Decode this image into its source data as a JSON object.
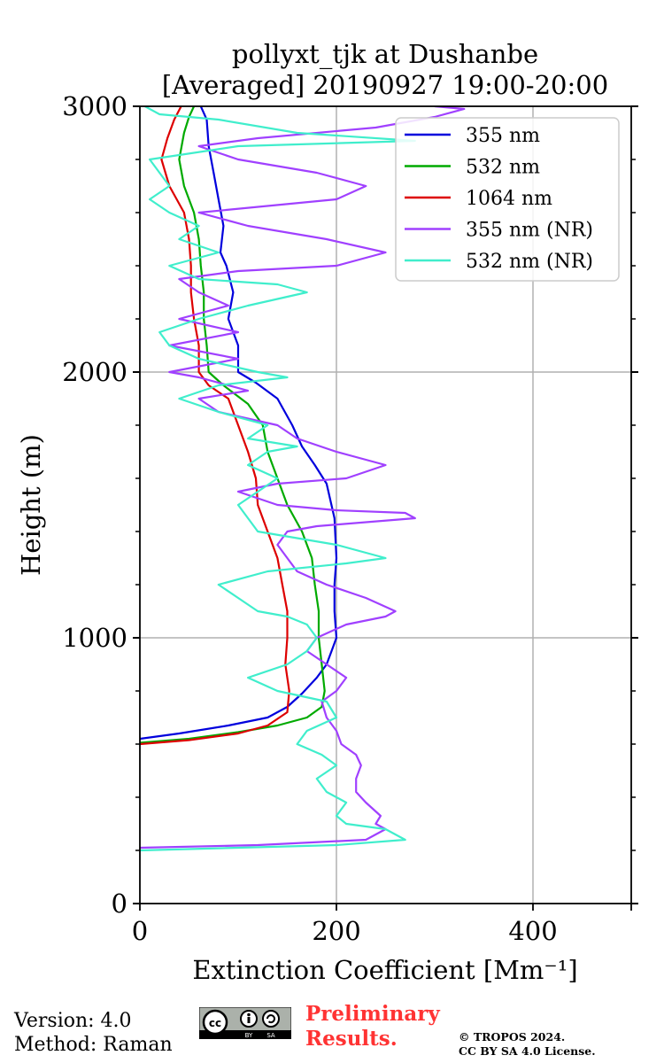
{
  "chart_data": {
    "type": "line",
    "title": "pollyxt_tjk at Dushanbe",
    "subtitle": "[Averaged] 20190927 19:00-20:00",
    "xlabel": "Extinction Coefficient [Mm⁻¹]",
    "ylabel": "Height (m)",
    "xlim": [
      0,
      500
    ],
    "ylim": [
      0,
      3000
    ],
    "xticks": [
      0,
      200,
      400
    ],
    "yticks": [
      0,
      1000,
      2000,
      3000
    ],
    "grid": true,
    "legend_position": "top-right",
    "series": [
      {
        "name": "355 nm",
        "color": "#0000dd",
        "points": [
          [
            0,
            620
          ],
          [
            40,
            640
          ],
          [
            90,
            670
          ],
          [
            130,
            700
          ],
          [
            150,
            740
          ],
          [
            165,
            790
          ],
          [
            180,
            850
          ],
          [
            190,
            900
          ],
          [
            195,
            950
          ],
          [
            200,
            1000
          ],
          [
            198,
            1100
          ],
          [
            198,
            1200
          ],
          [
            200,
            1300
          ],
          [
            198,
            1450
          ],
          [
            190,
            1580
          ],
          [
            178,
            1650
          ],
          [
            165,
            1720
          ],
          [
            155,
            1800
          ],
          [
            140,
            1900
          ],
          [
            118,
            1960
          ],
          [
            100,
            2000
          ],
          [
            100,
            2100
          ],
          [
            90,
            2200
          ],
          [
            95,
            2300
          ],
          [
            88,
            2400
          ],
          [
            82,
            2450
          ],
          [
            85,
            2550
          ],
          [
            80,
            2650
          ],
          [
            75,
            2750
          ],
          [
            70,
            2850
          ],
          [
            68,
            2950
          ],
          [
            62,
            3000
          ]
        ]
      },
      {
        "name": "532 nm",
        "color": "#00aa00",
        "points": [
          [
            0,
            605
          ],
          [
            50,
            620
          ],
          [
            100,
            645
          ],
          [
            140,
            670
          ],
          [
            170,
            700
          ],
          [
            185,
            740
          ],
          [
            188,
            800
          ],
          [
            185,
            900
          ],
          [
            182,
            1000
          ],
          [
            182,
            1100
          ],
          [
            178,
            1200
          ],
          [
            175,
            1300
          ],
          [
            165,
            1400
          ],
          [
            150,
            1500
          ],
          [
            140,
            1600
          ],
          [
            130,
            1700
          ],
          [
            125,
            1800
          ],
          [
            110,
            1880
          ],
          [
            85,
            1950
          ],
          [
            70,
            2000
          ],
          [
            68,
            2100
          ],
          [
            65,
            2200
          ],
          [
            65,
            2300
          ],
          [
            62,
            2400
          ],
          [
            60,
            2500
          ],
          [
            55,
            2600
          ],
          [
            45,
            2700
          ],
          [
            40,
            2800
          ],
          [
            45,
            2900
          ],
          [
            50,
            2960
          ],
          [
            55,
            3000
          ]
        ]
      },
      {
        "name": "1064 nm",
        "color": "#dd0000",
        "points": [
          [
            0,
            600
          ],
          [
            50,
            615
          ],
          [
            100,
            640
          ],
          [
            130,
            670
          ],
          [
            150,
            720
          ],
          [
            152,
            800
          ],
          [
            148,
            900
          ],
          [
            150,
            1000
          ],
          [
            150,
            1100
          ],
          [
            145,
            1200
          ],
          [
            140,
            1300
          ],
          [
            130,
            1400
          ],
          [
            120,
            1500
          ],
          [
            118,
            1600
          ],
          [
            110,
            1700
          ],
          [
            100,
            1800
          ],
          [
            90,
            1900
          ],
          [
            70,
            1950
          ],
          [
            60,
            2000
          ],
          [
            60,
            2100
          ],
          [
            55,
            2200
          ],
          [
            52,
            2300
          ],
          [
            52,
            2400
          ],
          [
            50,
            2500
          ],
          [
            45,
            2600
          ],
          [
            30,
            2700
          ],
          [
            22,
            2800
          ],
          [
            28,
            2880
          ],
          [
            35,
            2950
          ],
          [
            42,
            3000
          ]
        ]
      },
      {
        "name": "355 nm (NR)",
        "color": "#a040ff",
        "points": [
          [
            0,
            210
          ],
          [
            120,
            220
          ],
          [
            230,
            240
          ],
          [
            250,
            280
          ],
          [
            240,
            300
          ],
          [
            245,
            330
          ],
          [
            230,
            380
          ],
          [
            220,
            420
          ],
          [
            220,
            470
          ],
          [
            225,
            520
          ],
          [
            220,
            560
          ],
          [
            205,
            600
          ],
          [
            200,
            650
          ],
          [
            190,
            700
          ],
          [
            185,
            760
          ],
          [
            200,
            800
          ],
          [
            210,
            850
          ],
          [
            190,
            900
          ],
          [
            170,
            950
          ],
          [
            180,
            1000
          ],
          [
            210,
            1050
          ],
          [
            250,
            1080
          ],
          [
            260,
            1100
          ],
          [
            230,
            1150
          ],
          [
            190,
            1200
          ],
          [
            160,
            1250
          ],
          [
            150,
            1300
          ],
          [
            140,
            1350
          ],
          [
            150,
            1400
          ],
          [
            180,
            1420
          ],
          [
            280,
            1450
          ],
          [
            270,
            1470
          ],
          [
            200,
            1480
          ],
          [
            140,
            1500
          ],
          [
            100,
            1550
          ],
          [
            140,
            1580
          ],
          [
            210,
            1600
          ],
          [
            250,
            1650
          ],
          [
            200,
            1700
          ],
          [
            160,
            1750
          ],
          [
            140,
            1800
          ],
          [
            80,
            1850
          ],
          [
            60,
            1900
          ],
          [
            110,
            1930
          ],
          [
            60,
            1980
          ],
          [
            30,
            2000
          ],
          [
            100,
            2050
          ],
          [
            30,
            2100
          ],
          [
            100,
            2150
          ],
          [
            40,
            2200
          ],
          [
            90,
            2250
          ],
          [
            60,
            2300
          ],
          [
            40,
            2350
          ],
          [
            100,
            2380
          ],
          [
            200,
            2400
          ],
          [
            250,
            2450
          ],
          [
            190,
            2500
          ],
          [
            110,
            2550
          ],
          [
            60,
            2600
          ],
          [
            200,
            2650
          ],
          [
            230,
            2700
          ],
          [
            180,
            2750
          ],
          [
            100,
            2800
          ],
          [
            60,
            2850
          ],
          [
            120,
            2880
          ],
          [
            240,
            2920
          ],
          [
            300,
            2960
          ],
          [
            330,
            2990
          ],
          [
            300,
            3000
          ]
        ]
      },
      {
        "name": "532 nm (NR)",
        "color": "#40eecc",
        "points": [
          [
            0,
            200
          ],
          [
            100,
            210
          ],
          [
            200,
            220
          ],
          [
            270,
            240
          ],
          [
            250,
            280
          ],
          [
            210,
            300
          ],
          [
            200,
            330
          ],
          [
            210,
            380
          ],
          [
            190,
            420
          ],
          [
            180,
            470
          ],
          [
            200,
            520
          ],
          [
            185,
            560
          ],
          [
            160,
            600
          ],
          [
            170,
            650
          ],
          [
            200,
            700
          ],
          [
            190,
            760
          ],
          [
            140,
            800
          ],
          [
            110,
            850
          ],
          [
            150,
            900
          ],
          [
            170,
            950
          ],
          [
            180,
            1000
          ],
          [
            170,
            1050
          ],
          [
            150,
            1080
          ],
          [
            120,
            1100
          ],
          [
            100,
            1150
          ],
          [
            80,
            1200
          ],
          [
            130,
            1250
          ],
          [
            210,
            1280
          ],
          [
            250,
            1300
          ],
          [
            200,
            1350
          ],
          [
            120,
            1400
          ],
          [
            110,
            1450
          ],
          [
            100,
            1500
          ],
          [
            120,
            1550
          ],
          [
            140,
            1600
          ],
          [
            110,
            1650
          ],
          [
            130,
            1700
          ],
          [
            160,
            1720
          ],
          [
            110,
            1750
          ],
          [
            130,
            1800
          ],
          [
            80,
            1850
          ],
          [
            40,
            1900
          ],
          [
            80,
            1950
          ],
          [
            150,
            1980
          ],
          [
            120,
            2000
          ],
          [
            60,
            2050
          ],
          [
            30,
            2100
          ],
          [
            20,
            2150
          ],
          [
            60,
            2200
          ],
          [
            110,
            2250
          ],
          [
            170,
            2300
          ],
          [
            140,
            2330
          ],
          [
            60,
            2350
          ],
          [
            30,
            2400
          ],
          [
            80,
            2450
          ],
          [
            40,
            2500
          ],
          [
            60,
            2550
          ],
          [
            30,
            2600
          ],
          [
            10,
            2650
          ],
          [
            30,
            2700
          ],
          [
            20,
            2750
          ],
          [
            10,
            2800
          ],
          [
            100,
            2850
          ],
          [
            280,
            2870
          ],
          [
            160,
            2900
          ],
          [
            80,
            2950
          ],
          [
            20,
            2970
          ],
          [
            5,
            3000
          ]
        ]
      }
    ]
  },
  "footer": {
    "version": "Version: 4.0",
    "method": "Method: Raman",
    "preliminary_line1": "Preliminary",
    "preliminary_line2": "Results.",
    "copyright_line1": "© TROPOS 2024.",
    "copyright_line2": "CC BY SA 4.0 License.",
    "license_badge": "cc-by-sa-badge"
  }
}
